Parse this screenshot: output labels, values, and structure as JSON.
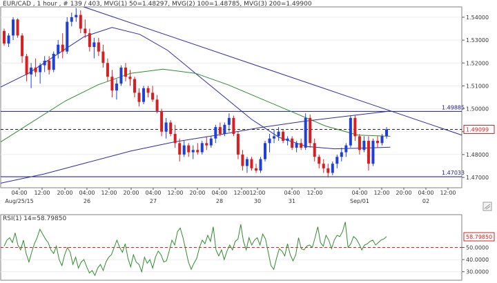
{
  "header": {
    "symbol_info": "EUR/CAD , 1 hour , # 139 / 403, MVG(1) 50=1.48297, MVG(2) 100=1.48785, MVG(3) 200=1.49900"
  },
  "rsi_header": "RSI(1) 14=58.79850",
  "colors": {
    "bull": "#1e3fd8",
    "bear": "#d81e1e",
    "ma50": "#2a2aa8",
    "ma100": "#2e8b2e",
    "ma200": "#2a2aa8",
    "levels": "#1a1a8c",
    "trend": "#2a2aa8",
    "rsi_line": "#2e8b2e",
    "rsi_ref": "#d81e1e"
  },
  "chart_data": [
    {
      "type": "candlestick",
      "title": "EUR/CAD , 1 hour",
      "ylim": [
        1.4655,
        1.5445
      ],
      "y_ticks": [
        "1.54000",
        "1.53000",
        "1.52000",
        "1.51000",
        "1.50000",
        "1.49000",
        "1.48000",
        "1.47000"
      ],
      "x_time_labels": [
        "04:00",
        "12:00",
        "20:00",
        "04:00",
        "12:00",
        "20:00",
        "04:00",
        "12:00",
        "20:00",
        "04:00",
        "12:00",
        "12:00",
        "04:00",
        "12:00",
        "04:00",
        "12:00",
        "20:00",
        "04:00",
        "12:00"
      ],
      "x_day_labels": [
        "Aug/25/15",
        "26",
        "27",
        "28",
        "30",
        "31",
        "Sep/01",
        "02"
      ],
      "horizontal_levels": [
        {
          "label": "1.49885",
          "value": 1.49885
        },
        {
          "label": "1.47033",
          "value": 1.47033
        }
      ],
      "current_price": {
        "label": "1.49099",
        "value": 1.49099
      },
      "trendline": [
        [
          0.18,
          1.5445
        ],
        [
          1.0,
          1.4885
        ]
      ],
      "series": [
        {
          "name": "MVG(1) 50",
          "values": [
            1.5095,
            1.5155,
            1.5235,
            1.5315,
            1.5355,
            1.5325,
            1.5255,
            1.5155,
            1.5055,
            1.4955,
            1.4875,
            1.4835,
            1.4825,
            1.4828,
            1.4832
          ]
        },
        {
          "name": "MVG(2) 100",
          "values": [
            1.4855,
            1.4945,
            1.5035,
            1.5105,
            1.5155,
            1.5173,
            1.5155,
            1.5105,
            1.5045,
            1.4985,
            1.4925,
            1.4885,
            1.488
          ]
        },
        {
          "name": "MVG(3) 200",
          "values": [
            1.4675,
            1.4715,
            1.4765,
            1.4815,
            1.4855,
            1.4885,
            1.4918,
            1.4945,
            1.4968,
            1.499
          ]
        }
      ],
      "candles": [
        [
          1.534,
          1.535,
          1.5275,
          1.5285
        ],
        [
          1.5285,
          1.533,
          1.527,
          1.532
        ],
        [
          1.532,
          1.54,
          1.53,
          1.539
        ],
        [
          1.539,
          1.5395,
          1.531,
          1.532
        ],
        [
          1.532,
          1.533,
          1.52,
          1.523
        ],
        [
          1.523,
          1.524,
          1.512,
          1.515
        ],
        [
          1.515,
          1.52,
          1.509,
          1.518
        ],
        [
          1.518,
          1.522,
          1.514,
          1.516
        ],
        [
          1.516,
          1.52,
          1.511,
          1.519
        ],
        [
          1.519,
          1.523,
          1.516,
          1.521
        ],
        [
          1.521,
          1.523,
          1.515,
          1.517
        ],
        [
          1.517,
          1.525,
          1.516,
          1.524
        ],
        [
          1.524,
          1.53,
          1.522,
          1.528
        ],
        [
          1.528,
          1.533,
          1.522,
          1.525
        ],
        [
          1.525,
          1.54,
          1.524,
          1.538
        ],
        [
          1.538,
          1.542,
          1.536,
          1.54
        ],
        [
          1.54,
          1.544,
          1.538,
          1.541
        ],
        [
          1.541,
          1.543,
          1.533,
          1.535
        ],
        [
          1.535,
          1.539,
          1.531,
          1.533
        ],
        [
          1.533,
          1.535,
          1.525,
          1.527
        ],
        [
          1.527,
          1.531,
          1.522,
          1.529
        ],
        [
          1.529,
          1.531,
          1.523,
          1.525
        ],
        [
          1.525,
          1.528,
          1.518,
          1.52
        ],
        [
          1.52,
          1.522,
          1.512,
          1.514
        ],
        [
          1.514,
          1.517,
          1.505,
          1.508
        ],
        [
          1.508,
          1.513,
          1.504,
          1.511
        ],
        [
          1.511,
          1.519,
          1.51,
          1.518
        ],
        [
          1.518,
          1.52,
          1.512,
          1.514
        ],
        [
          1.514,
          1.517,
          1.51,
          1.513
        ],
        [
          1.513,
          1.514,
          1.505,
          1.507
        ],
        [
          1.507,
          1.509,
          1.501,
          1.503
        ],
        [
          1.503,
          1.51,
          1.502,
          1.509
        ],
        [
          1.509,
          1.51,
          1.505,
          1.507
        ],
        [
          1.507,
          1.51,
          1.503,
          1.504
        ],
        [
          1.504,
          1.506,
          1.498,
          1.499
        ],
        [
          1.499,
          1.5,
          1.488,
          1.49
        ],
        [
          1.49,
          1.496,
          1.487,
          1.494
        ],
        [
          1.494,
          1.495,
          1.488,
          1.489
        ],
        [
          1.489,
          1.493,
          1.483,
          1.485
        ],
        [
          1.485,
          1.487,
          1.477,
          1.48
        ],
        [
          1.48,
          1.486,
          1.479,
          1.484
        ],
        [
          1.484,
          1.485,
          1.479,
          1.481
        ],
        [
          1.481,
          1.484,
          1.478,
          1.482
        ],
        [
          1.482,
          1.485,
          1.48,
          1.481
        ],
        [
          1.481,
          1.486,
          1.48,
          1.485
        ],
        [
          1.485,
          1.488,
          1.482,
          1.484
        ],
        [
          1.484,
          1.488,
          1.483,
          1.487
        ],
        [
          1.487,
          1.493,
          1.485,
          1.492
        ],
        [
          1.492,
          1.494,
          1.488,
          1.489
        ],
        [
          1.489,
          1.494,
          1.488,
          1.493
        ],
        [
          1.493,
          1.498,
          1.49,
          1.496
        ],
        [
          1.496,
          1.497,
          1.488,
          1.489
        ],
        [
          1.489,
          1.49,
          1.478,
          1.48
        ],
        [
          1.48,
          1.482,
          1.473,
          1.475
        ],
        [
          1.475,
          1.479,
          1.472,
          1.478
        ],
        [
          1.478,
          1.479,
          1.473,
          1.474
        ],
        [
          1.474,
          1.476,
          1.472,
          1.473
        ],
        [
          1.473,
          1.479,
          1.472,
          1.478
        ],
        [
          1.478,
          1.486,
          1.477,
          1.485
        ],
        [
          1.485,
          1.489,
          1.481,
          1.487
        ],
        [
          1.487,
          1.491,
          1.485,
          1.488
        ],
        [
          1.488,
          1.492,
          1.486,
          1.49
        ],
        [
          1.49,
          1.491,
          1.485,
          1.486
        ],
        [
          1.486,
          1.488,
          1.484,
          1.487
        ],
        [
          1.487,
          1.488,
          1.482,
          1.483
        ],
        [
          1.483,
          1.486,
          1.481,
          1.485
        ],
        [
          1.485,
          1.487,
          1.482,
          1.483
        ],
        [
          1.483,
          1.498,
          1.482,
          1.496
        ],
        [
          1.496,
          1.4975,
          1.483,
          1.485
        ],
        [
          1.485,
          1.487,
          1.477,
          1.479
        ],
        [
          1.479,
          1.48,
          1.474,
          1.476
        ],
        [
          1.476,
          1.478,
          1.472,
          1.474
        ],
        [
          1.474,
          1.476,
          1.47,
          1.472
        ],
        [
          1.472,
          1.477,
          1.471,
          1.476
        ],
        [
          1.476,
          1.48,
          1.474,
          1.479
        ],
        [
          1.479,
          1.483,
          1.477,
          1.481
        ],
        [
          1.481,
          1.485,
          1.479,
          1.484
        ],
        [
          1.484,
          1.497,
          1.483,
          1.496
        ],
        [
          1.496,
          1.497,
          1.486,
          1.488
        ],
        [
          1.488,
          1.489,
          1.48,
          1.482
        ],
        [
          1.482,
          1.488,
          1.481,
          1.486
        ],
        [
          1.486,
          1.488,
          1.473,
          1.476
        ],
        [
          1.476,
          1.487,
          1.475,
          1.486
        ],
        [
          1.486,
          1.488,
          1.483,
          1.485
        ],
        [
          1.485,
          1.489,
          1.484,
          1.488
        ],
        [
          1.488,
          1.492,
          1.487,
          1.491
        ]
      ]
    },
    {
      "type": "line",
      "title": "RSI(1) 14=58.79850",
      "ylim": [
        23,
        77
      ],
      "y_ticks": [
        "50.0000",
        "40.0000",
        "30.0000"
      ],
      "current_value": {
        "label": "58.79850",
        "value": 58.7985
      },
      "reference_level": 50,
      "series": [
        {
          "name": "RSI(1) 14",
          "values": [
            51,
            56,
            58,
            54,
            62,
            52,
            48,
            56,
            45,
            38,
            46,
            53,
            58,
            65,
            61,
            57,
            54,
            48,
            45,
            51,
            40,
            35,
            44,
            50,
            46,
            36,
            42,
            33,
            38,
            40,
            34,
            29,
            31,
            27,
            33,
            36,
            31,
            38,
            42,
            44,
            50,
            56,
            50,
            46,
            53,
            41,
            34,
            44,
            38,
            36,
            30,
            42,
            37,
            40,
            33,
            42,
            47,
            44,
            38,
            39,
            47,
            56,
            52,
            63,
            66,
            58,
            48,
            38,
            32,
            37,
            41,
            50,
            56,
            53,
            60,
            55,
            67,
            48,
            43,
            48,
            40,
            47,
            52,
            48,
            55,
            57,
            69,
            55,
            48,
            58,
            52,
            56,
            58,
            52,
            61,
            57,
            46,
            35,
            32,
            41,
            49,
            47,
            43,
            53,
            44,
            39,
            44,
            58,
            49,
            48,
            51,
            52,
            50,
            58,
            67,
            54,
            51,
            60,
            56,
            49,
            56,
            60,
            59,
            63,
            71,
            50,
            53,
            59,
            57,
            53,
            48,
            52,
            53,
            55,
            56,
            52,
            54,
            56,
            57,
            59
          ]
        }
      ]
    }
  ]
}
